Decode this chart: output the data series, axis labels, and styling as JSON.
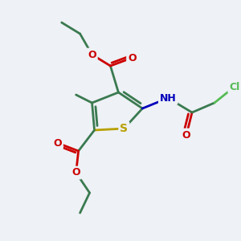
{
  "bg_color": "#eef1f5",
  "atom_colors": {
    "C": "#3a7a50",
    "S": "#b8a000",
    "N": "#0000bb",
    "O": "#cc0000",
    "H": "#888888",
    "Cl": "#55bb55"
  },
  "figsize": [
    3.0,
    3.0
  ],
  "dpi": 100
}
